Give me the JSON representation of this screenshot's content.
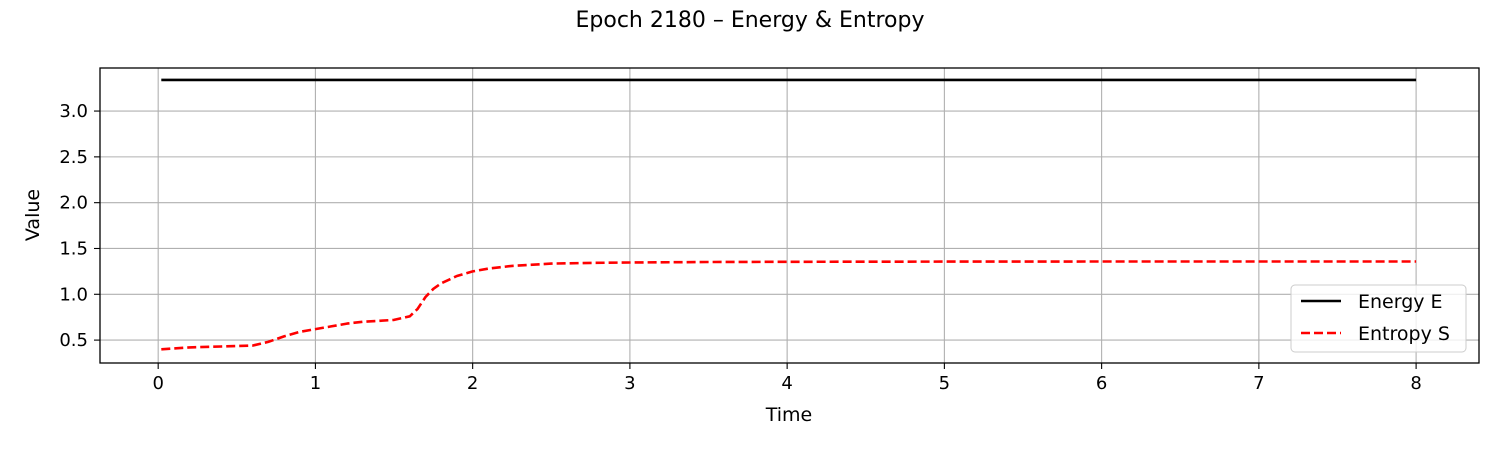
{
  "chart_data": {
    "type": "line",
    "title": "Epoch 2180 – Energy & Entropy",
    "xlabel": "Time",
    "ylabel": "Value",
    "xlim": [
      -0.37,
      8.4
    ],
    "ylim": [
      0.25,
      3.47
    ],
    "x_ticks": [
      0,
      1,
      2,
      3,
      4,
      5,
      6,
      7,
      8
    ],
    "x_tick_labels": [
      "0",
      "1",
      "2",
      "3",
      "4",
      "5",
      "6",
      "7",
      "8"
    ],
    "y_ticks": [
      0.5,
      1.0,
      1.5,
      2.0,
      2.5,
      3.0
    ],
    "y_tick_labels": [
      "0.5",
      "1.0",
      "1.5",
      "2.0",
      "2.5",
      "3.0"
    ],
    "grid": true,
    "legend_position": "lower-right",
    "series": [
      {
        "name": "Energy E",
        "color": "#000000",
        "style": "solid",
        "x": [
          0.02,
          1,
          2,
          3,
          4,
          5,
          6,
          7,
          8
        ],
        "y": [
          3.34,
          3.34,
          3.34,
          3.34,
          3.34,
          3.34,
          3.34,
          3.34,
          3.34
        ]
      },
      {
        "name": "Entropy S",
        "color": "#ff0000",
        "style": "dashed",
        "x": [
          0.02,
          0.2,
          0.4,
          0.6,
          0.7,
          0.8,
          0.9,
          1.0,
          1.1,
          1.2,
          1.3,
          1.4,
          1.5,
          1.6,
          1.65,
          1.7,
          1.75,
          1.8,
          1.9,
          2.0,
          2.1,
          2.25,
          2.5,
          2.75,
          3.0,
          3.5,
          4.0,
          5.0,
          6.0,
          7.0,
          8.0
        ],
        "y": [
          0.4,
          0.42,
          0.43,
          0.44,
          0.48,
          0.54,
          0.59,
          0.62,
          0.65,
          0.68,
          0.7,
          0.71,
          0.72,
          0.76,
          0.84,
          0.97,
          1.06,
          1.12,
          1.2,
          1.25,
          1.28,
          1.31,
          1.335,
          1.343,
          1.347,
          1.352,
          1.355,
          1.357,
          1.358,
          1.358,
          1.358
        ]
      }
    ]
  }
}
